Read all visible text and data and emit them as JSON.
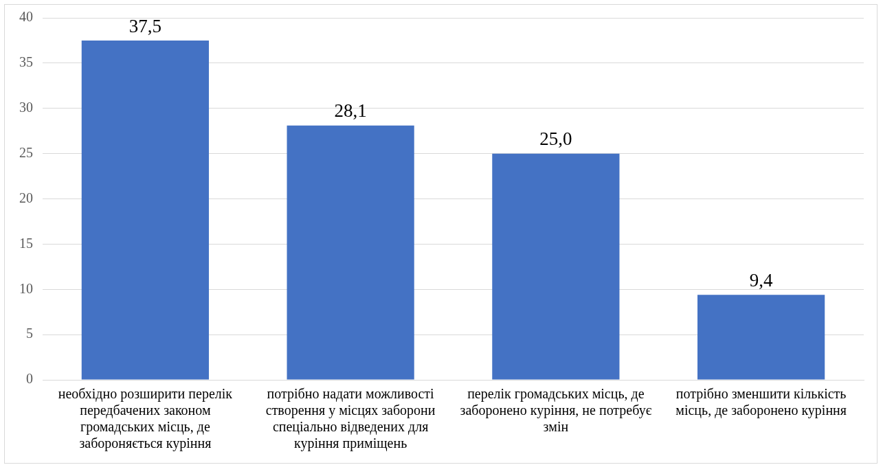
{
  "chart_data": {
    "type": "bar",
    "categories": [
      "необхідно розширити перелік передбачених законом громадських місць, де забороняється куріння",
      "потрібно надати можливості створення у місцях заборони спеціально відведених для куріння приміщень",
      "перелік громадських місць, де заборонено куріння, не потребує змін",
      "потрібно зменшити кількість місць, де заборонено куріння"
    ],
    "values": [
      37.5,
      28.1,
      25,
      9.4
    ],
    "value_labels": [
      "37,5",
      "28,1",
      "25,0",
      "9,4"
    ],
    "color": "#4472c4",
    "ylim": [
      0,
      40
    ],
    "yticks": [
      0,
      5,
      10,
      15,
      20,
      25,
      30,
      35,
      40
    ],
    "grid": "y",
    "legend": false
  }
}
